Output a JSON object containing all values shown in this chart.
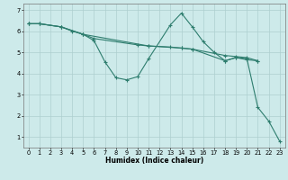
{
  "background_color": "#cdeaea",
  "grid_color": "#aecfcf",
  "line_color": "#2e7d6e",
  "line1": {
    "x": [
      0,
      1,
      3,
      4,
      5,
      6,
      10,
      11,
      14,
      15,
      18,
      19,
      20,
      21
    ],
    "y": [
      6.35,
      6.35,
      6.2,
      6.0,
      5.85,
      5.65,
      5.35,
      5.3,
      5.2,
      5.15,
      4.85,
      4.8,
      4.75,
      4.6
    ]
  },
  "line2": {
    "x": [
      0,
      1,
      3,
      5,
      6,
      7,
      8,
      9,
      10,
      11,
      13,
      14,
      15,
      16,
      17,
      18,
      19,
      20,
      21
    ],
    "y": [
      6.35,
      6.35,
      6.2,
      5.85,
      5.55,
      4.55,
      3.8,
      3.7,
      3.85,
      4.7,
      6.3,
      6.85,
      6.2,
      5.5,
      5.0,
      4.6,
      4.75,
      4.65,
      4.6
    ]
  },
  "line3": {
    "x": [
      0,
      1,
      3,
      5,
      11,
      13,
      14,
      15,
      18,
      19,
      20,
      21,
      22,
      23
    ],
    "y": [
      6.35,
      6.35,
      6.2,
      5.85,
      5.3,
      5.25,
      5.2,
      5.15,
      4.6,
      4.75,
      4.7,
      2.4,
      1.75,
      0.8
    ]
  },
  "xlim": [
    -0.5,
    23.5
  ],
  "ylim": [
    0.5,
    7.3
  ],
  "xlabel": "Humidex (Indice chaleur)",
  "xticks": [
    0,
    1,
    2,
    3,
    4,
    5,
    6,
    7,
    8,
    9,
    10,
    11,
    12,
    13,
    14,
    15,
    16,
    17,
    18,
    19,
    20,
    21,
    22,
    23
  ],
  "yticks": [
    1,
    2,
    3,
    4,
    5,
    6,
    7
  ],
  "axis_fontsize": 5.5,
  "tick_fontsize": 4.8
}
